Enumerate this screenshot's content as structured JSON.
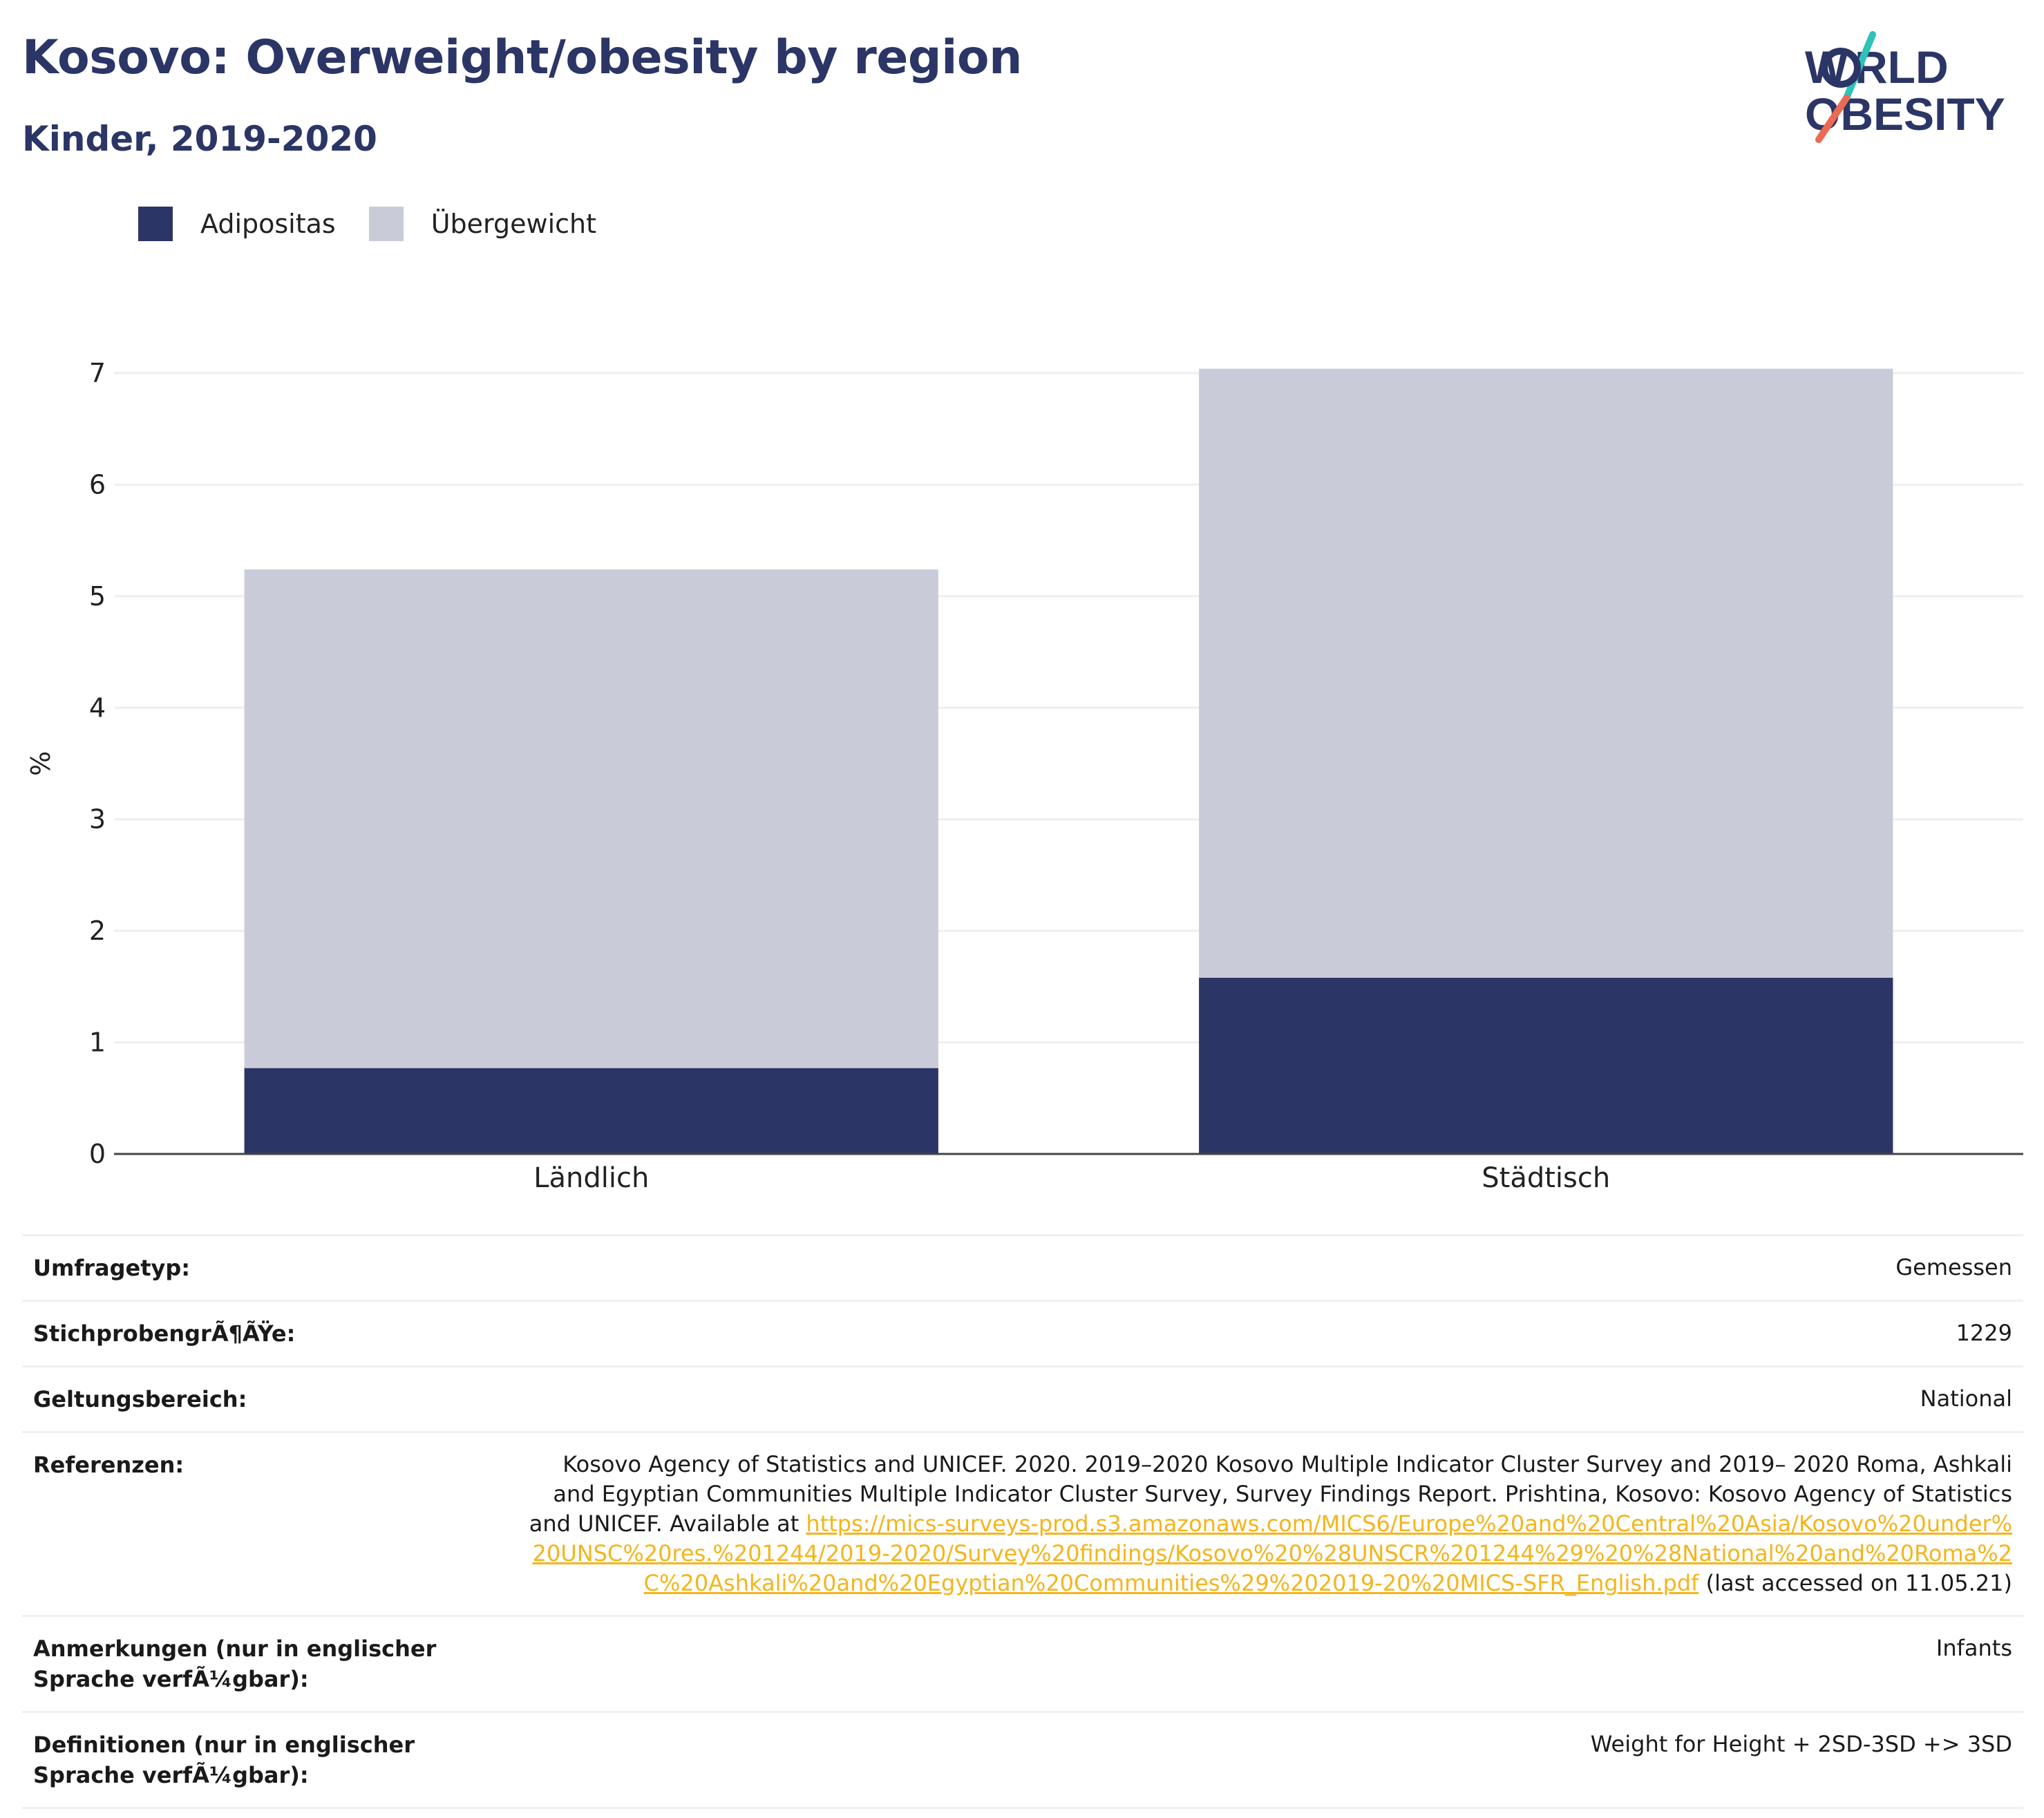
{
  "header": {
    "title": "Kosovo: Overweight/obesity by region",
    "subtitle": "Kinder, 2019-2020"
  },
  "logo": {
    "line1": "WORLD",
    "line2": "OBESITY"
  },
  "legend": [
    {
      "label": "Adipositas",
      "color": "#2b3566"
    },
    {
      "label": "Übergewicht",
      "color": "#c9ccd8"
    }
  ],
  "chart_data": {
    "type": "bar",
    "stacked": true,
    "categories": [
      "Ländlich",
      "Städtisch"
    ],
    "series": [
      {
        "name": "Adipositas",
        "values": [
          0.77,
          1.58
        ],
        "color": "#2b3566"
      },
      {
        "name": "Übergewicht",
        "values": [
          4.47,
          5.46
        ],
        "color": "#c9ccd8"
      }
    ],
    "title": "Kosovo: Overweight/obesity by region",
    "subtitle": "Kinder, 2019-2020",
    "xlabel": "",
    "ylabel": "%",
    "ylim": [
      0,
      7
    ],
    "yticks": [
      "0",
      "1",
      "2",
      "3",
      "4",
      "5",
      "6",
      "7"
    ],
    "grid": true,
    "legend_position": "top-left"
  },
  "meta": {
    "survey_type": {
      "label": "Umfragetyp:",
      "value": "Gemessen"
    },
    "sample_size": {
      "label": "StichprobengrÃ¶ÃŸe:",
      "value": "1229"
    },
    "coverage": {
      "label": "Geltungsbereich:",
      "value": "National"
    },
    "references": {
      "label": "Referenzen:",
      "text_before": "Kosovo Agency of Statistics and UNICEF. 2020. 2019–2020 Kosovo Multiple Indicator Cluster Survey and 2019– 2020 Roma, Ashkali and Egyptian Communities Multiple Indicator Cluster Survey, Survey Findings Report. Prishtina, Kosovo: Kosovo Agency of Statistics and UNICEF. Available at ",
      "link": "https://mics-surveys-prod.s3.amazonaws.com/MICS6/Europe%20and%20Central%20Asia/Kosovo%20under%20UNSC%20res.%201244/2019-2020/Survey%20findings/Kosovo%20%28UNSCR%201244%29%20%28National%20and%20Roma%2C%20Ashkali%20and%20Egyptian%20Communities%29%202019-20%20MICS-SFR_English.pdf",
      "text_after": " (last accessed on 11.05.21)"
    },
    "notes": {
      "label": "Anmerkungen (nur in englischer Sprache verfÃ¼gbar):",
      "value": "Infants"
    },
    "definitions": {
      "label": "Definitionen (nur in englischer Sprache verfÃ¼gbar):",
      "value": "Weight for Height + 2SD-3SD +> 3SD"
    }
  }
}
